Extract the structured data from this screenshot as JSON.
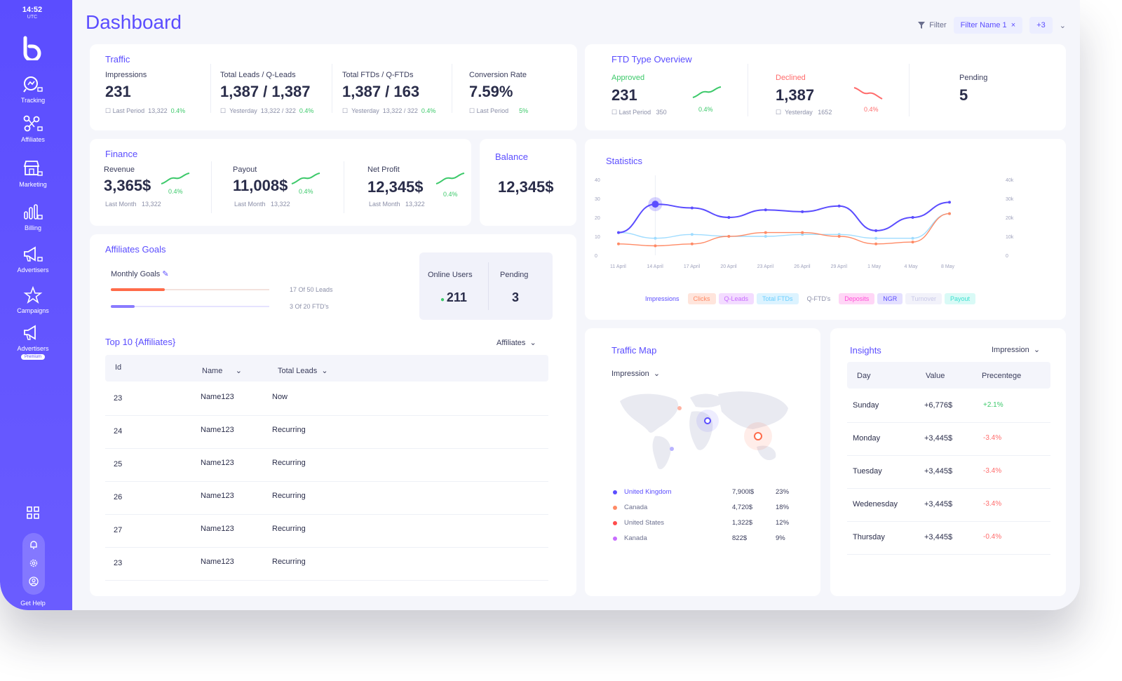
{
  "sidebar": {
    "time": "14:52",
    "tz": "UTC",
    "items": [
      {
        "label": "Tracking"
      },
      {
        "label": "Affiliates"
      },
      {
        "label": "Marketing"
      },
      {
        "label": "Billing"
      },
      {
        "label": "Advertisers"
      },
      {
        "label": "Campaigns"
      },
      {
        "label": "Advertisers",
        "badge": "Premium"
      }
    ],
    "help_label": "Get Help"
  },
  "header": {
    "title": "Dashboard",
    "filter_label": "Filter",
    "filter_chip": "Filter Name 1",
    "extra_count": "+3"
  },
  "traffic": {
    "title": "Traffic",
    "impressions": {
      "label": "Impressions",
      "value": "231",
      "period": "Last Period",
      "period_value": "13,322",
      "change": "0.4%"
    },
    "leads": {
      "label": "Total Leads / Q-Leads",
      "value": "1,387 / 1,387",
      "period": "Yesterday",
      "period_value": "13,322 / 322",
      "change": "0.4%"
    },
    "ftds": {
      "label": "Total FTDs / Q-FTDs",
      "value": "1,387 / 163",
      "period": "Yesterday",
      "period_value": "13,322 / 322",
      "change": "0.4%"
    },
    "conversion": {
      "label": "Conversion Rate",
      "value": "7.59%",
      "period": "Last Period",
      "change": "5%"
    }
  },
  "ftd_overview": {
    "title": "FTD Type Overview",
    "approved": {
      "label": "Approved",
      "value": "231",
      "period": "Last Period",
      "period_value": "350",
      "change": "0.4%"
    },
    "declined": {
      "label": "Declined",
      "value": "1,387",
      "period": "Yesterday",
      "period_value": "1652",
      "change": "0.4%"
    },
    "pending": {
      "label": "Pending",
      "value": "5"
    }
  },
  "finance": {
    "title": "Finance",
    "revenue": {
      "label": "Revenue",
      "value": "3,365$",
      "period": "Last Month",
      "period_value": "13,322",
      "change": "0.4%"
    },
    "payout": {
      "label": "Payout",
      "value": "11,008$",
      "period": "Last Month",
      "period_value": "13,322",
      "change": "0.4%"
    },
    "net_profit": {
      "label": "Net Profit",
      "value": "12,345$",
      "period": "Last Month",
      "period_value": "13,322",
      "change": "0.4%"
    }
  },
  "balance": {
    "title": "Balance",
    "value": "12,345$"
  },
  "statistics": {
    "title": "Statistics",
    "legend": [
      "Impressions",
      "Clicks",
      "Q-Leads",
      "Total FTDs",
      "Q-FTD's",
      "Deposits",
      "NGR",
      "Turnover",
      "Payout"
    ],
    "legend_colors": [
      "#5b4dff",
      "#ff8a65",
      "#c86cff",
      "#6ccfff",
      "#8b8fa8",
      "#ff4fd8",
      "#5b4dff",
      "#c9c9e8",
      "#3be0d0"
    ],
    "x_labels": [
      "11 April",
      "14 April",
      "17 April",
      "20 April",
      "23 April",
      "26 April",
      "29 April",
      "1 May",
      "4 May",
      "8 May"
    ],
    "y_left": [
      "40",
      "30",
      "20",
      "10",
      "0"
    ],
    "y_right": [
      "40k",
      "30k",
      "20k",
      "10k",
      "0"
    ]
  },
  "chart_data": {
    "type": "line",
    "x": [
      "11 April",
      "14 April",
      "17 April",
      "20 April",
      "23 April",
      "26 April",
      "29 April",
      "1 May",
      "4 May",
      "8 May"
    ],
    "ylim": [
      0,
      40
    ],
    "series": [
      {
        "values": [
          12,
          27,
          25,
          20,
          24,
          23,
          26,
          13,
          20,
          28
        ],
        "color": "#5b4dff"
      },
      {
        "values": [
          6,
          5,
          6,
          10,
          12,
          12,
          10,
          6,
          7,
          22
        ],
        "color": "#ff8a65"
      },
      {
        "values": [
          12,
          9,
          11,
          10,
          10,
          11,
          11,
          9,
          9,
          22
        ],
        "color": "#9fdcff"
      }
    ]
  },
  "affiliate_goals": {
    "title": "Affiliates Goals",
    "monthly_label": "Monthly Goals",
    "goal1_text": "17 Of 50 Leads",
    "goal1_fraction": 0.34,
    "goal2_text": "3 Of 20 FTD's",
    "goal2_fraction": 0.15,
    "online_users_label": "Online Users",
    "online_users_value": "211",
    "pending_label": "Pending",
    "pending_value": "3"
  },
  "top10": {
    "title": "Top 10 {Affiliates}",
    "dropdown": "Affiliates",
    "columns": [
      "Id",
      "Name",
      "Total Leads"
    ],
    "rows": [
      [
        "23",
        "Name123",
        "Now"
      ],
      [
        "24",
        "Name123",
        "Recurring"
      ],
      [
        "25",
        "Name123",
        "Recurring"
      ],
      [
        "26",
        "Name123",
        "Recurring"
      ],
      [
        "27",
        "Name123",
        "Recurring"
      ],
      [
        "23",
        "Name123",
        "Recurring"
      ]
    ]
  },
  "traffic_map": {
    "title": "Traffic Map",
    "dropdown": "Impression",
    "countries": [
      {
        "name": "United Kingdom",
        "value": "7,900l$",
        "pct": "23%",
        "color": "#5b4dff"
      },
      {
        "name": "Canada",
        "value": "4,720$",
        "pct": "18%",
        "color": "#ff8a65"
      },
      {
        "name": "United States",
        "value": "1,322$",
        "pct": "12%",
        "color": "#ff4d4d"
      },
      {
        "name": "Kanada",
        "value": "822$",
        "pct": "9%",
        "color": "#c86cff"
      }
    ]
  },
  "insights": {
    "title": "Insights",
    "dropdown": "Impression",
    "columns": [
      "Day",
      "Value",
      "Precentege"
    ],
    "rows": [
      {
        "day": "Sunday",
        "value": "+6,776$",
        "pct": "+2.1%",
        "positive": true
      },
      {
        "day": "Monday",
        "value": "+3,445$",
        "pct": "-3.4%",
        "positive": false
      },
      {
        "day": "Tuesday",
        "value": "+3,445$",
        "pct": "-3.4%",
        "positive": false
      },
      {
        "day": "Wedenesday",
        "value": "+3,445$",
        "pct": "-3.4%",
        "positive": false
      },
      {
        "day": "Thursday",
        "value": "+3,445$",
        "pct": "-0.4%",
        "positive": false
      }
    ]
  }
}
